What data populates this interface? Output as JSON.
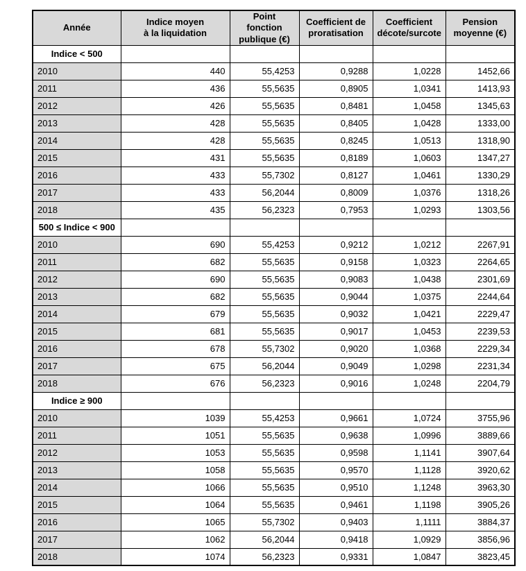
{
  "table": {
    "columns": [
      "Année",
      "Indice moyen\nà la liquidation",
      "Point fonction\npublique (€)",
      "Coefficient de\nproratisation",
      "Coefficient\ndécote/surcote",
      "Pension\nmoyenne (€)"
    ],
    "colors": {
      "header_bg": "#d9d9d9",
      "year_cell_bg": "#d9d9d9",
      "section_label_text": "#0070c0",
      "border": "#000000"
    },
    "sections": [
      {
        "label": "Indice < 500",
        "rows": [
          [
            "2010",
            "440",
            "55,4253",
            "0,9288",
            "1,0228",
            "1452,66"
          ],
          [
            "2011",
            "436",
            "55,5635",
            "0,8905",
            "1,0341",
            "1413,93"
          ],
          [
            "2012",
            "426",
            "55,5635",
            "0,8481",
            "1,0458",
            "1345,63"
          ],
          [
            "2013",
            "428",
            "55,5635",
            "0,8405",
            "1,0428",
            "1333,00"
          ],
          [
            "2014",
            "428",
            "55,5635",
            "0,8245",
            "1,0513",
            "1318,90"
          ],
          [
            "2015",
            "431",
            "55,5635",
            "0,8189",
            "1,0603",
            "1347,27"
          ],
          [
            "2016",
            "433",
            "55,7302",
            "0,8127",
            "1,0461",
            "1330,29"
          ],
          [
            "2017",
            "433",
            "56,2044",
            "0,8009",
            "1,0376",
            "1318,26"
          ],
          [
            "2018",
            "435",
            "56,2323",
            "0,7953",
            "1,0293",
            "1303,56"
          ]
        ]
      },
      {
        "label": "500 ≤ Indice < 900",
        "rows": [
          [
            "2010",
            "690",
            "55,4253",
            "0,9212",
            "1,0212",
            "2267,91"
          ],
          [
            "2011",
            "682",
            "55,5635",
            "0,9158",
            "1,0323",
            "2264,65"
          ],
          [
            "2012",
            "690",
            "55,5635",
            "0,9083",
            "1,0438",
            "2301,69"
          ],
          [
            "2013",
            "682",
            "55,5635",
            "0,9044",
            "1,0375",
            "2244,64"
          ],
          [
            "2014",
            "679",
            "55,5635",
            "0,9032",
            "1,0421",
            "2229,47"
          ],
          [
            "2015",
            "681",
            "55,5635",
            "0,9017",
            "1,0453",
            "2239,53"
          ],
          [
            "2016",
            "678",
            "55,7302",
            "0,9020",
            "1,0368",
            "2229,34"
          ],
          [
            "2017",
            "675",
            "56,2044",
            "0,9049",
            "1,0298",
            "2231,34"
          ],
          [
            "2018",
            "676",
            "56,2323",
            "0,9016",
            "1,0248",
            "2204,79"
          ]
        ]
      },
      {
        "label": "Indice ≥ 900",
        "rows": [
          [
            "2010",
            "1039",
            "55,4253",
            "0,9661",
            "1,0724",
            "3755,96"
          ],
          [
            "2011",
            "1051",
            "55,5635",
            "0,9638",
            "1,0996",
            "3889,66"
          ],
          [
            "2012",
            "1053",
            "55,5635",
            "0,9598",
            "1,1141",
            "3907,64"
          ],
          [
            "2013",
            "1058",
            "55,5635",
            "0,9570",
            "1,1128",
            "3920,62"
          ],
          [
            "2014",
            "1066",
            "55,5635",
            "0,9510",
            "1,1248",
            "3963,30"
          ],
          [
            "2015",
            "1064",
            "55,5635",
            "0,9461",
            "1,1198",
            "3905,26"
          ],
          [
            "2016",
            "1065",
            "55,7302",
            "0,9403",
            "1,1111",
            "3884,37"
          ],
          [
            "2017",
            "1062",
            "56,2044",
            "0,9418",
            "1,0929",
            "3856,96"
          ],
          [
            "2018",
            "1074",
            "56,2323",
            "0,9331",
            "1,0847",
            "3823,45"
          ]
        ]
      }
    ]
  }
}
